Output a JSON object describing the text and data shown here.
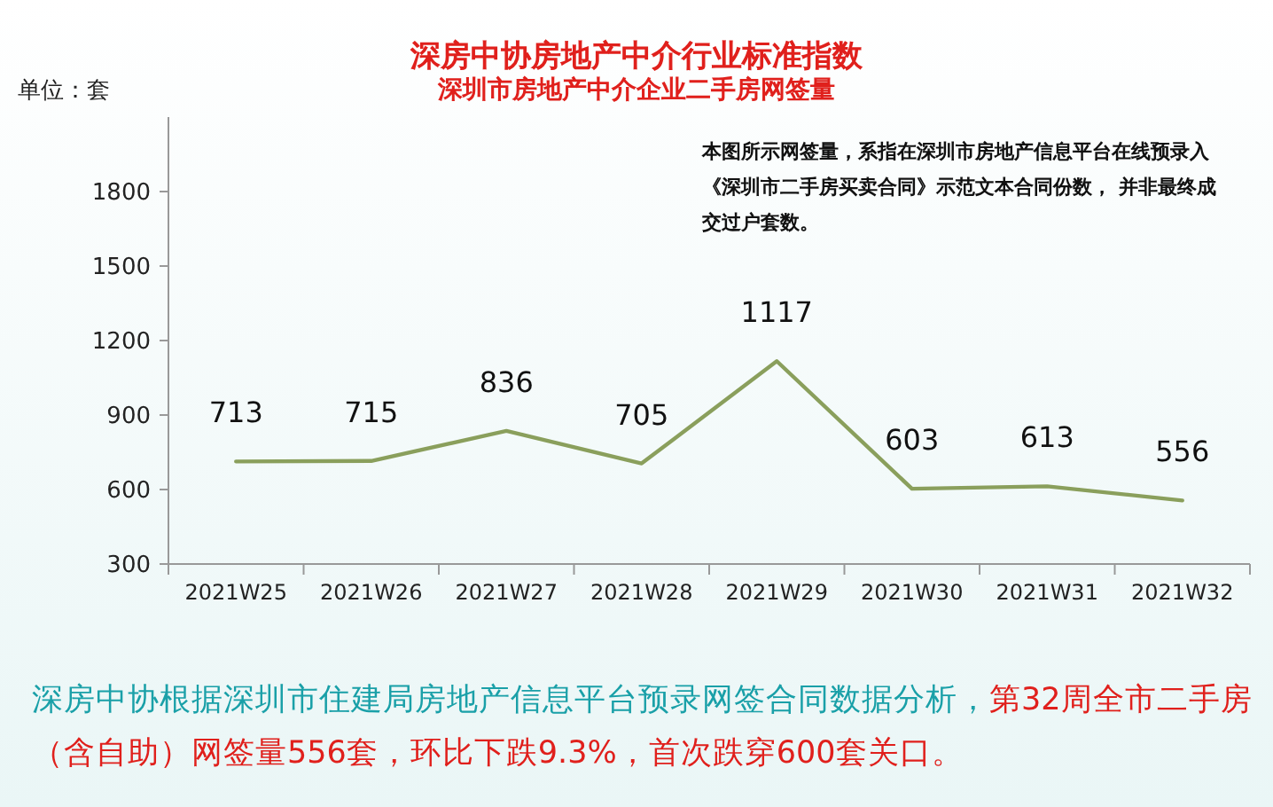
{
  "chart_data": {
    "type": "line",
    "title": "深房中协房地产中介行业标准指数",
    "subtitle": "深圳市房地产中介企业二手房网签量",
    "ylabel": "单位：套",
    "annotations": [
      "本图所示网签量，系指在深圳市房地产信息平台在线预录入《深圳市二手房买卖合同》示范文本合同份数， 并非最终成交过户套数。",
      "深房中协根据深圳市住建局房地产信息平台预录网签合同数据分析，",
      "第32周全市二手房（含自助）网签量556套，环比下跌9.3%，首次跌穿600套关口。"
    ],
    "categories": [
      "2021W25",
      "2021W26",
      "2021W27",
      "2021W28",
      "2021W29",
      "2021W30",
      "2021W31",
      "2021W32"
    ],
    "values": [
      713,
      715,
      836,
      705,
      1117,
      603,
      613,
      556
    ],
    "color": "#8a9f5c",
    "ylim": [
      300,
      2100
    ],
    "yticks": [
      300,
      600,
      900,
      1200,
      1500,
      1800
    ],
    "data_labels": true
  }
}
